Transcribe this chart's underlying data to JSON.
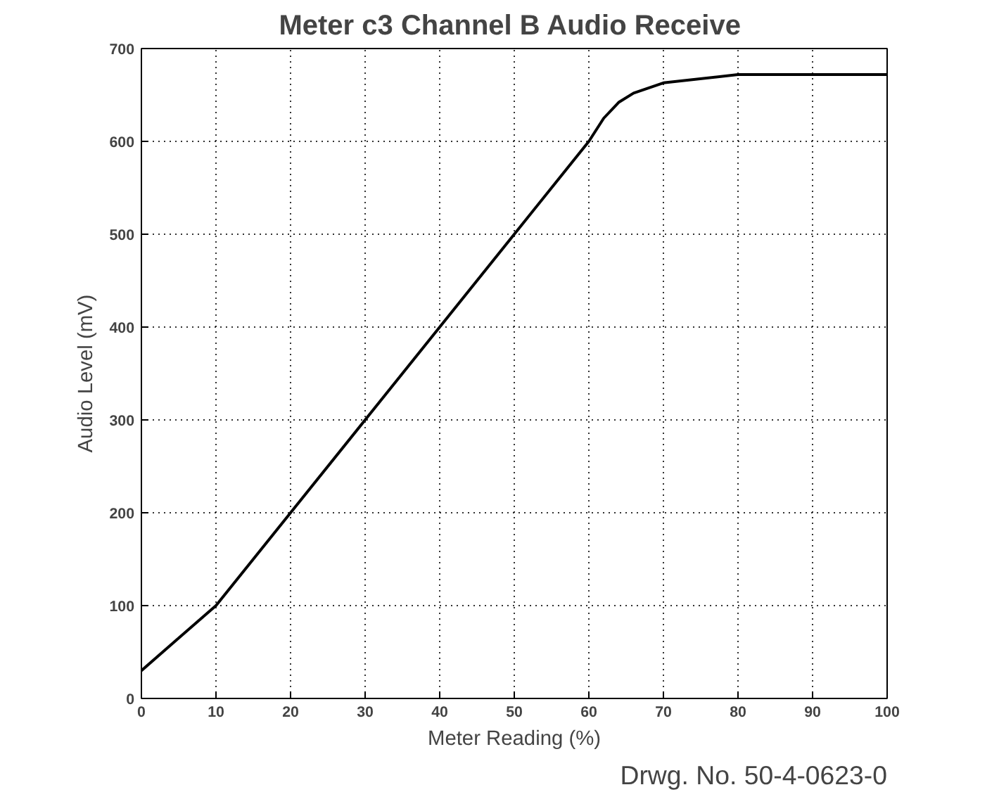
{
  "chart_data": {
    "type": "line",
    "title": "Meter c3  Channel B Audio Receive",
    "xlabel": "Meter Reading (%)",
    "ylabel": "Audio Level (mV)",
    "annotations": [
      "Drwg. No. 50-4-0623-0"
    ],
    "series": [
      {
        "color": "#000000",
        "x": [
          0,
          10,
          20,
          30,
          40,
          50,
          60,
          62,
          64,
          66,
          70,
          80,
          100
        ],
        "values": [
          30,
          100,
          200,
          300,
          400,
          500,
          600,
          625,
          642,
          652,
          663,
          672,
          672
        ]
      }
    ],
    "xlim": [
      0,
      100
    ],
    "ylim": [
      0,
      700
    ],
    "xticks": [
      0,
      10,
      20,
      30,
      40,
      50,
      60,
      70,
      80,
      90,
      100
    ],
    "yticks": [
      0,
      100,
      200,
      300,
      400,
      500,
      600,
      700
    ],
    "grid": true,
    "marker": "none",
    "line_style": "solid"
  }
}
